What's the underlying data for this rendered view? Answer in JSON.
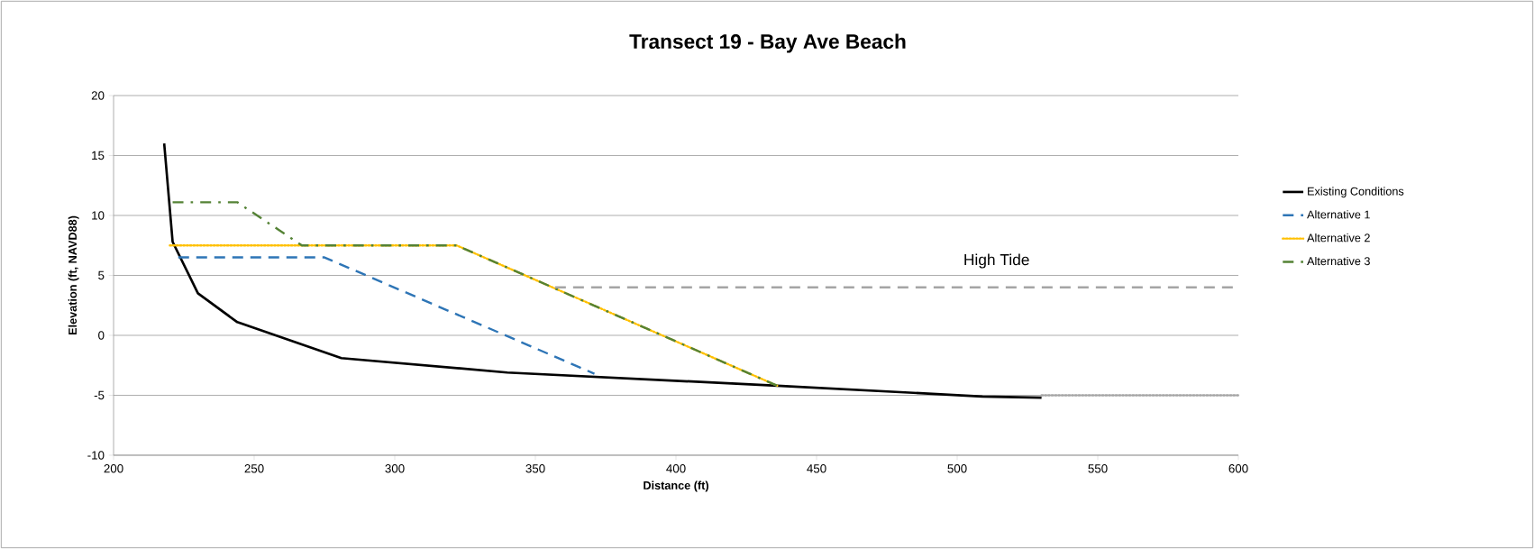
{
  "chart_data": {
    "type": "line",
    "title": "Transect 19 - Bay Ave Beach",
    "xlabel": "Distance (ft)",
    "ylabel": "Elevation (ft, NAVD88)",
    "xlim": [
      200,
      600
    ],
    "xticks": [
      200,
      250,
      300,
      350,
      400,
      450,
      500,
      550,
      600
    ],
    "ylim": [
      -10,
      20
    ],
    "yticks": [
      -10,
      -5,
      0,
      5,
      10,
      15,
      20
    ],
    "grid": "y",
    "legend": "right",
    "series": [
      {
        "name": "Existing Conditions",
        "color": "#000000",
        "line_style": "solid",
        "x": [
          218,
          221,
          230,
          244,
          281,
          340,
          436,
          509,
          530
        ],
        "values": [
          16,
          7.8,
          3.5,
          1.1,
          -1.9,
          -3.1,
          -4.2,
          -5.1,
          -5.2
        ]
      },
      {
        "name": "Alternative 1",
        "color": "#2e75b6",
        "line_style": "dashed",
        "x": [
          223,
          275,
          371
        ],
        "values": [
          6.5,
          6.5,
          -3.2
        ]
      },
      {
        "name": "Alternative 2",
        "color": "#ffc000",
        "line_style": "dotted",
        "x": [
          220,
          322,
          436
        ],
        "values": [
          7.5,
          7.5,
          -4.2
        ]
      },
      {
        "name": "Alternative 3",
        "color": "#548235",
        "line_style": "dashdot",
        "x": [
          221,
          244,
          267,
          322,
          436
        ],
        "values": [
          11.1,
          11.1,
          7.5,
          7.5,
          -4.2
        ]
      },
      {
        "color": "#a5a5a5",
        "line_style": "dashed",
        "x": [
          357,
          600
        ],
        "values": [
          4.0,
          4.0
        ]
      },
      {
        "color": "#a5a5a5",
        "line_style": "dotted",
        "x": [
          530,
          600
        ],
        "values": [
          -5.0,
          -5.0
        ]
      }
    ],
    "annotations": [
      "High Tide"
    ]
  }
}
